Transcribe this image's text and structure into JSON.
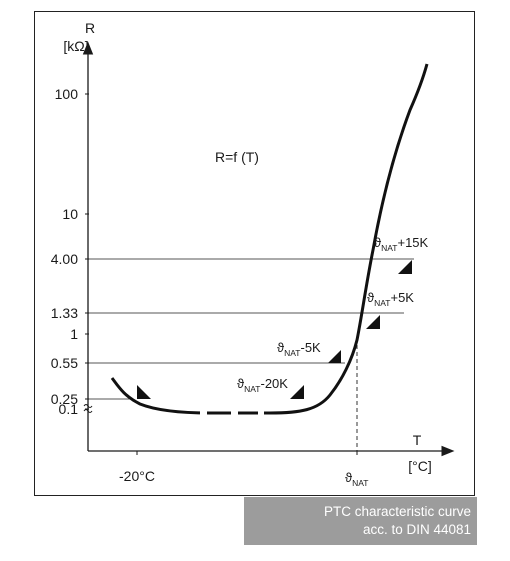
{
  "caption": {
    "line1": "PTC characteristic curve",
    "line2": "acc. to DIN 44081"
  },
  "chart_data": {
    "type": "line",
    "title": "R=f (T)",
    "ylabel": "R",
    "yunit": "[kΩ]",
    "xlabel": "T",
    "xunit": "[°C]",
    "y_ticks": [
      "100",
      "10",
      "4.00",
      "1.33",
      "1",
      "0.55",
      "0.25",
      "0.1"
    ],
    "x_ticks": [
      "-20°C",
      "ϑNAT"
    ],
    "reference_lines": [
      4.0,
      1.33,
      0.55,
      0.25
    ],
    "annotations": [
      {
        "symbol": "ϑ",
        "sub": "NAT",
        "offset": "+15K"
      },
      {
        "symbol": "ϑ",
        "sub": "NAT",
        "offset": "+5K"
      },
      {
        "symbol": "ϑ",
        "sub": "NAT",
        "offset": "-5K"
      },
      {
        "symbol": "ϑ",
        "sub": "NAT",
        "offset": "-20K"
      }
    ],
    "x_note": "ϑNAT",
    "series": [
      {
        "values_note": "curve points as (temperature relative to ϑNAT in K, R in kΩ)",
        "points": [
          [
            -170,
            0.22
          ],
          [
            -160,
            0.16
          ],
          [
            -150,
            0.13
          ],
          [
            -140,
            0.118
          ],
          [
            -120,
            0.108
          ],
          [
            -100,
            0.105
          ],
          [
            -80,
            0.105
          ],
          [
            -60,
            0.108
          ],
          [
            -40,
            0.12
          ],
          [
            -30,
            0.14
          ],
          [
            -20,
            0.2
          ],
          [
            -15,
            0.25
          ],
          [
            -10,
            0.35
          ],
          [
            -5,
            0.55
          ],
          [
            0,
            1.0
          ],
          [
            5,
            1.33
          ],
          [
            10,
            2.5
          ],
          [
            15,
            4.0
          ],
          [
            20,
            8
          ],
          [
            25,
            17
          ],
          [
            30,
            40
          ],
          [
            35,
            80
          ],
          [
            40,
            150
          ]
        ],
        "dashed_range": [
          -120,
          -80
        ]
      }
    ]
  }
}
